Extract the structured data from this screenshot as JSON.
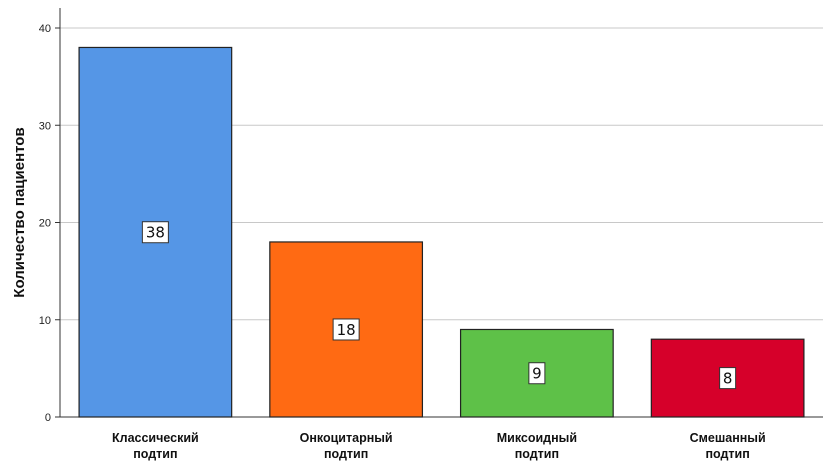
{
  "chart_data": {
    "type": "bar",
    "categories": [
      [
        "Классический",
        "подтип"
      ],
      [
        "Онкоцитарный",
        "подтип"
      ],
      [
        "Миксоидный",
        "подтип"
      ],
      [
        "Смешанный",
        "подтип"
      ]
    ],
    "values": [
      38,
      18,
      9,
      8
    ],
    "value_labels": [
      "38",
      "18",
      "9",
      "8"
    ],
    "bar_colors": [
      "#5596e6",
      "#ff6a13",
      "#5ec148",
      "#d6002a"
    ],
    "ylabel": "Количество пациентов",
    "xlabel": "",
    "ylim": [
      0,
      40
    ],
    "yticks": [
      0,
      10,
      20,
      30,
      40
    ],
    "grid": true
  }
}
